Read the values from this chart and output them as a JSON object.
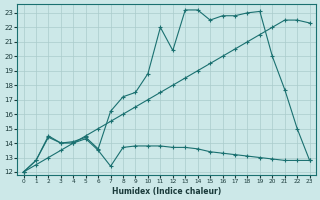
{
  "bg_color": "#cce8e8",
  "grid_color": "#aacccc",
  "line_color": "#1a7070",
  "xlim": [
    -0.5,
    23.5
  ],
  "ylim": [
    11.8,
    23.6
  ],
  "xlabel": "Humidex (Indice chaleur)",
  "xticks": [
    0,
    1,
    2,
    3,
    4,
    5,
    6,
    7,
    8,
    9,
    10,
    11,
    12,
    13,
    14,
    15,
    16,
    17,
    18,
    19,
    20,
    21,
    22,
    23
  ],
  "yticks": [
    12,
    13,
    14,
    15,
    16,
    17,
    18,
    19,
    20,
    21,
    22,
    23
  ],
  "line1_x": [
    0,
    1,
    2,
    3,
    4,
    5,
    6,
    7,
    8,
    9,
    10,
    11,
    12,
    13,
    14,
    15,
    16,
    17,
    18,
    19,
    20,
    21,
    22,
    23
  ],
  "line1_y": [
    12.0,
    12.8,
    14.4,
    14.0,
    14.0,
    14.3,
    13.5,
    12.4,
    13.7,
    13.8,
    13.8,
    13.8,
    13.7,
    13.7,
    13.6,
    13.4,
    13.3,
    13.2,
    13.1,
    13.0,
    12.9,
    12.8,
    12.8,
    12.8
  ],
  "line2_x": [
    0,
    1,
    2,
    3,
    4,
    5,
    6,
    7,
    8,
    9,
    10,
    11,
    12,
    13,
    14,
    15,
    16,
    17,
    18,
    19,
    20,
    21,
    22,
    23
  ],
  "line2_y": [
    12.0,
    12.8,
    14.5,
    14.0,
    14.1,
    14.4,
    13.6,
    16.2,
    17.2,
    17.5,
    18.8,
    22.0,
    20.4,
    23.2,
    23.2,
    22.5,
    22.8,
    22.8,
    23.0,
    23.1,
    20.0,
    17.7,
    15.0,
    12.8
  ],
  "line3_x": [
    0,
    1,
    2,
    3,
    4,
    5,
    6,
    7,
    8,
    9,
    10,
    11,
    12,
    13,
    14,
    15,
    16,
    17,
    18,
    19,
    20,
    21,
    22,
    23
  ],
  "line3_y": [
    12.0,
    12.5,
    13.0,
    13.5,
    14.0,
    14.5,
    15.0,
    15.5,
    16.0,
    16.5,
    17.0,
    17.5,
    18.0,
    18.5,
    19.0,
    19.5,
    20.0,
    20.5,
    21.0,
    21.5,
    22.0,
    22.5,
    22.5,
    22.3
  ]
}
